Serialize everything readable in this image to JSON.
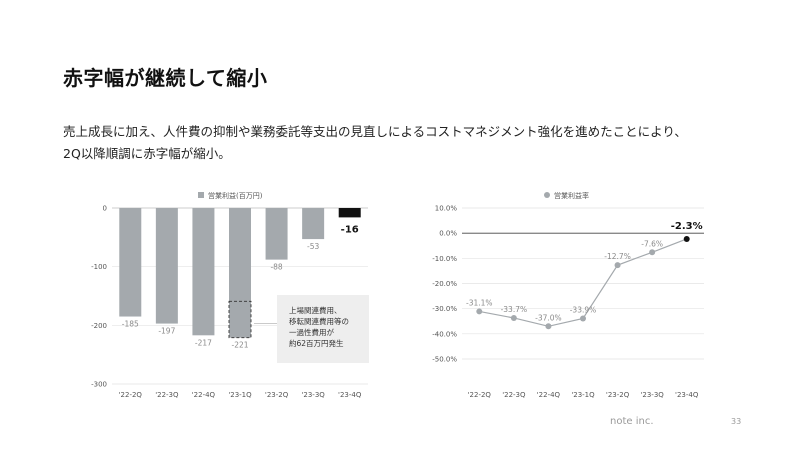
{
  "slide": {
    "title": "赤字幅が継続して縮小",
    "description_lines": [
      "売上成長に加え、人件費の抑制や業務委託等支出の見直しによるコストマネジメント強化を進めたことにより、",
      "2Q以降順調に赤字幅が縮小。"
    ],
    "callout_lines": [
      "上場関連費用、",
      "移転関連費用等の",
      "一過性費用が",
      "約62百万円発生"
    ],
    "footer_brand": "note inc.",
    "page_number": "33"
  },
  "colors": {
    "bar": "#a4a9ad",
    "bar_highlight": "#111111",
    "line": "#a4a9ad",
    "point_highlight": "#111111",
    "callout_bg": "#eeeeee"
  },
  "chart_data": [
    {
      "type": "bar",
      "legend": "営業利益(百万円)",
      "categories": [
        "'22-2Q",
        "'22-3Q",
        "'22-4Q",
        "'23-1Q",
        "'23-2Q",
        "'23-3Q",
        "'23-4Q"
      ],
      "values": [
        -185,
        -197,
        -217,
        -221,
        -88,
        -53,
        -16
      ],
      "value_labels": [
        "-185",
        "-197",
        "-217",
        "-221",
        "-88",
        "-53",
        "-16"
      ],
      "highlight_index": 6,
      "dashed_segment": {
        "category_index": 3,
        "value": -62
      },
      "y_ticks": [
        0,
        -100,
        -200,
        -300
      ],
      "y_tick_labels": [
        "0",
        "-100",
        "-200",
        "-300"
      ],
      "ylim": [
        -300,
        0
      ],
      "legend_position": "top-center"
    },
    {
      "type": "line",
      "legend": "営業利益率",
      "categories": [
        "'22-2Q",
        "'22-3Q",
        "'22-4Q",
        "'23-1Q",
        "'23-2Q",
        "'23-3Q",
        "'23-4Q"
      ],
      "values": [
        -31.1,
        -33.7,
        -37.0,
        -33.9,
        -12.7,
        -7.6,
        -2.3
      ],
      "value_labels": [
        "-31.1%",
        "-33.7%",
        "-37.0%",
        "-33.9%",
        "-12.7%",
        "-7.6%",
        "-2.3%"
      ],
      "highlight_index": 6,
      "y_ticks": [
        10,
        0,
        -10,
        -20,
        -30,
        -40,
        -50
      ],
      "y_tick_labels": [
        "10.0%",
        "0.0%",
        "-10.0%",
        "-20.0%",
        "-30.0%",
        "-40.0%",
        "-50.0%"
      ],
      "ylim": [
        -50,
        10
      ],
      "legend_position": "top-center"
    }
  ]
}
